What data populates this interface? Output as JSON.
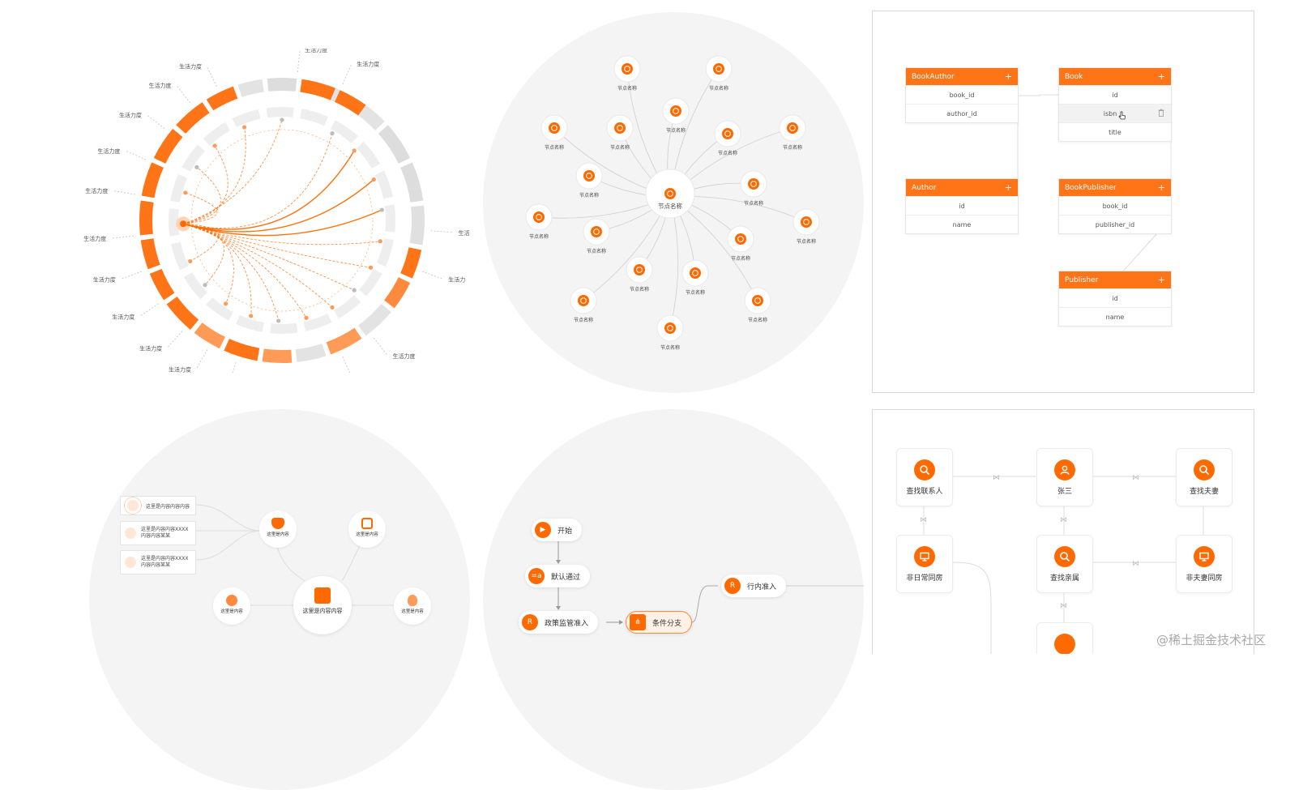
{
  "chord": {
    "labels_left": [
      "生活力度",
      "生活力度",
      "生活力度",
      "生活力度",
      "生活力度",
      "生活力度",
      "生活力度",
      "生活力度",
      "生活力度",
      "生活力度",
      "生活力度"
    ],
    "labels_right": [
      "生活力度",
      "生活力度",
      "生活力",
      "生活力",
      "生活力度",
      "生活力度"
    ],
    "accent": "#ff6a00"
  },
  "radial": {
    "center_label": "节点名称",
    "node_label": "节点名称"
  },
  "er": {
    "tables": [
      {
        "name": "BookAuthor",
        "fields": [
          "book_id",
          "author_id"
        ]
      },
      {
        "name": "Book",
        "fields": [
          "id",
          "isbn",
          "title"
        ]
      },
      {
        "name": "Author",
        "fields": [
          "id",
          "name"
        ]
      },
      {
        "name": "BookPublisher",
        "fields": [
          "book_id",
          "publisher_id"
        ]
      },
      {
        "name": "Publisher",
        "fields": [
          "id",
          "name"
        ]
      }
    ],
    "plus": "+"
  },
  "mind": {
    "items": [
      "这里是内容内容内容",
      "这里是内容内容XXXX内容内容某某",
      "这里是内容内容XXXX内容内容某某"
    ],
    "circles": [
      "这里是内容",
      "这里是内容",
      "这里是内容",
      "这里是内容内容",
      "这里是内容"
    ]
  },
  "flow": {
    "nodes": [
      "开始",
      "默认通过",
      "政策监管准入",
      "条件分支",
      "行内准入"
    ],
    "icons": [
      "▶",
      "=a",
      "R",
      "⋔",
      "R"
    ]
  },
  "relation": {
    "nodes": [
      "查找联系人",
      "张三",
      "查找夫妻",
      "非日常同房",
      "查找亲属",
      "非夫妻同房"
    ]
  },
  "watermark": "@稀土掘金技术社区"
}
